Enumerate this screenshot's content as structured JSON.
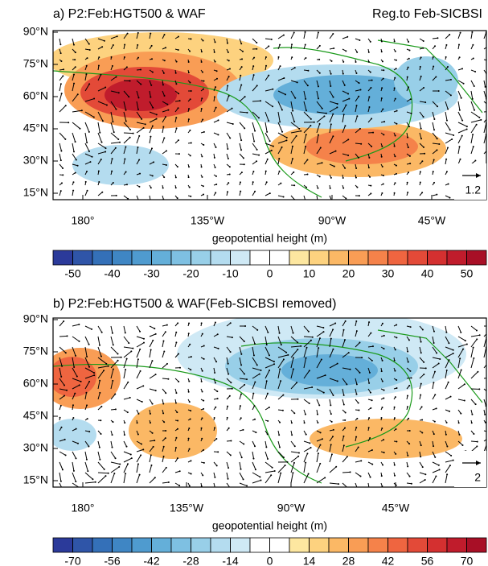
{
  "panels": [
    {
      "title": "a) P2:Feb:HGT500 & WAF",
      "right_label": "Reg.to Feb-SICBSI",
      "lat_labels": [
        "90°N",
        "75°N",
        "60°N",
        "45°N",
        "30°N",
        "15°N"
      ],
      "lon_labels": [
        "180°",
        "135°W",
        "90°W",
        "45°W"
      ],
      "ref_vector_label": "1.2",
      "colorbar": {
        "label": "geopotential height (m)",
        "clim": [
          -55,
          55
        ],
        "ticks": [
          -50,
          -40,
          -30,
          -20,
          -10,
          0,
          10,
          20,
          30,
          40,
          50
        ]
      }
    },
    {
      "title": "b) P2:Feb:HGT500 & WAF(Feb-SICBSI removed)",
      "lat_labels": [
        "90°N",
        "75°N",
        "60°N",
        "45°N",
        "30°N",
        "15°N"
      ],
      "lon_labels": [
        "180°",
        "135°W",
        "90°W",
        "45°W"
      ],
      "ref_vector_label": "2",
      "colorbar": {
        "label": "geopotential height (m)",
        "clim": [
          -77,
          77
        ],
        "ticks": [
          -70,
          -56,
          -42,
          -28,
          -14,
          0,
          14,
          28,
          42,
          56,
          70
        ]
      }
    }
  ]
}
